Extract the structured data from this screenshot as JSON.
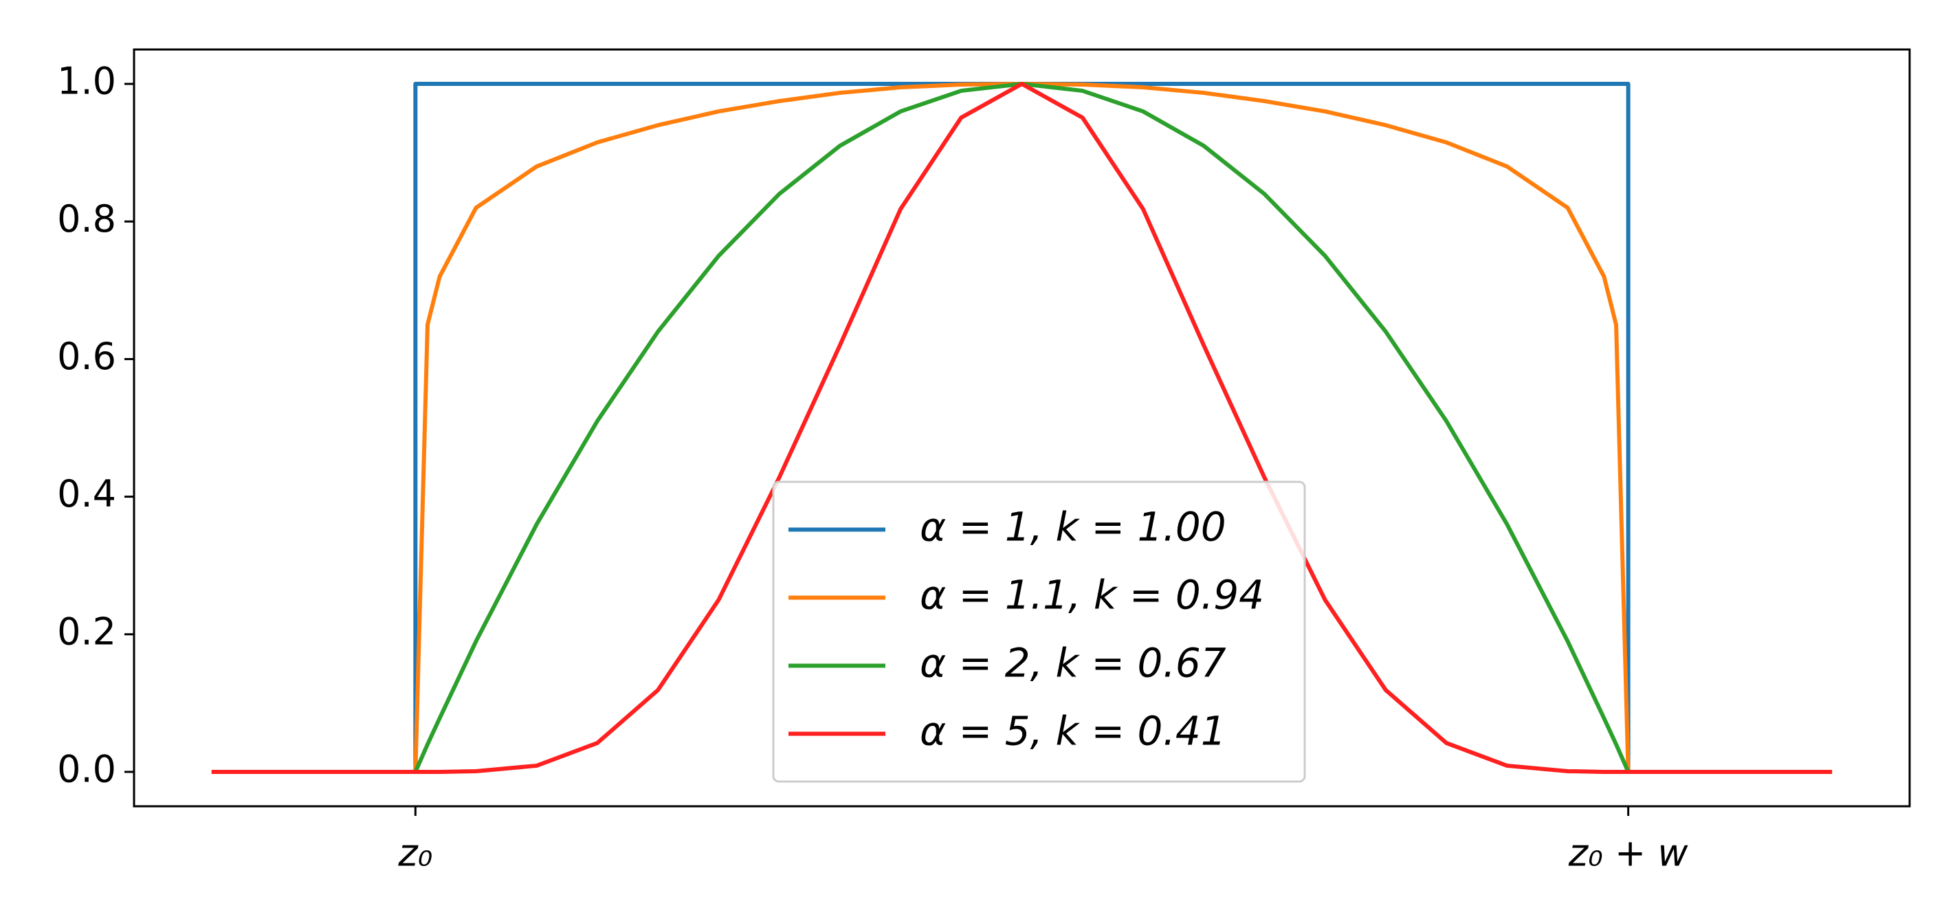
{
  "chart_data": {
    "type": "line",
    "x": [
      -0.168,
      0,
      0.01,
      0.02,
      0.05,
      0.1,
      0.15,
      0.2,
      0.25,
      0.3,
      0.35,
      0.4,
      0.45,
      0.5,
      0.55,
      0.6,
      0.65,
      0.7,
      0.75,
      0.8,
      0.85,
      0.9,
      0.95,
      0.98,
      0.99,
      1,
      1.168
    ],
    "series": [
      {
        "name": "α = 1, k = 1.00",
        "color": "#1f77b4",
        "x": [
          -0.168,
          0,
          0,
          1,
          1,
          1.168
        ],
        "values": [
          0,
          0,
          1,
          1,
          0,
          0
        ]
      },
      {
        "name": "α = 1.1, k = 0.94",
        "color": "#ff7f0e",
        "values": [
          0,
          0,
          0.65,
          0.72,
          0.82,
          0.88,
          0.915,
          0.94,
          0.96,
          0.975,
          0.987,
          0.995,
          0.999,
          1,
          0.999,
          0.995,
          0.987,
          0.975,
          0.96,
          0.94,
          0.915,
          0.88,
          0.82,
          0.72,
          0.65,
          0,
          0
        ]
      },
      {
        "name": "α = 2, k = 0.67",
        "color": "#2ca02c",
        "values": [
          0,
          0,
          0.04,
          0.078,
          0.19,
          0.36,
          0.51,
          0.64,
          0.75,
          0.84,
          0.91,
          0.96,
          0.99,
          1,
          0.99,
          0.96,
          0.91,
          0.84,
          0.75,
          0.64,
          0.51,
          0.36,
          0.19,
          0.078,
          0.04,
          0,
          0
        ]
      },
      {
        "name": "α = 5, k = 0.41",
        "color": "#ff2020",
        "values": [
          0,
          0,
          0,
          0,
          0.001,
          0.009,
          0.042,
          0.119,
          0.25,
          0.428,
          0.62,
          0.818,
          0.951,
          1,
          0.951,
          0.818,
          0.62,
          0.428,
          0.25,
          0.119,
          0.042,
          0.009,
          0.001,
          0,
          0,
          0,
          0
        ]
      }
    ],
    "xlim": [
      -0.232,
      1.232
    ],
    "xticks": [
      {
        "value": 0,
        "label": "z₀"
      },
      {
        "value": 1,
        "label": "z₀ + w"
      }
    ],
    "ylim": [
      -0.05,
      1.05
    ],
    "yticks": [
      {
        "value": 0,
        "label": "0.0"
      },
      {
        "value": 0.2,
        "label": "0.2"
      },
      {
        "value": 0.4,
        "label": "0.4"
      },
      {
        "value": 0.6,
        "label": "0.6"
      },
      {
        "value": 0.8,
        "label": "0.8"
      },
      {
        "value": 1,
        "label": "1.0"
      }
    ],
    "legend": "lower center"
  }
}
